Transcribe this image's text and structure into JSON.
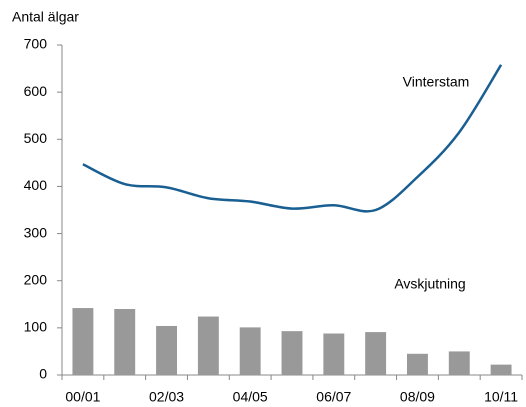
{
  "chart_data": {
    "type": "bar",
    "y_label": "Antal älgar",
    "categories": [
      "00/01",
      null,
      "02/03",
      null,
      "04/05",
      null,
      "06/07",
      null,
      "08/09",
      null,
      "10/11"
    ],
    "series": [
      {
        "name": "Avskjutning",
        "type": "bar",
        "color": "#999999",
        "values": [
          142,
          140,
          104,
          124,
          101,
          93,
          88,
          91,
          45,
          50,
          22
        ]
      },
      {
        "name": "Vinterstam",
        "type": "line",
        "color": "#1a5f92",
        "values": [
          447,
          405,
          398,
          375,
          368,
          353,
          360,
          350,
          420,
          515,
          658
        ]
      }
    ],
    "ylim": [
      0,
      700
    ],
    "yticks": [
      0,
      100,
      200,
      300,
      400,
      500,
      600,
      700
    ]
  }
}
